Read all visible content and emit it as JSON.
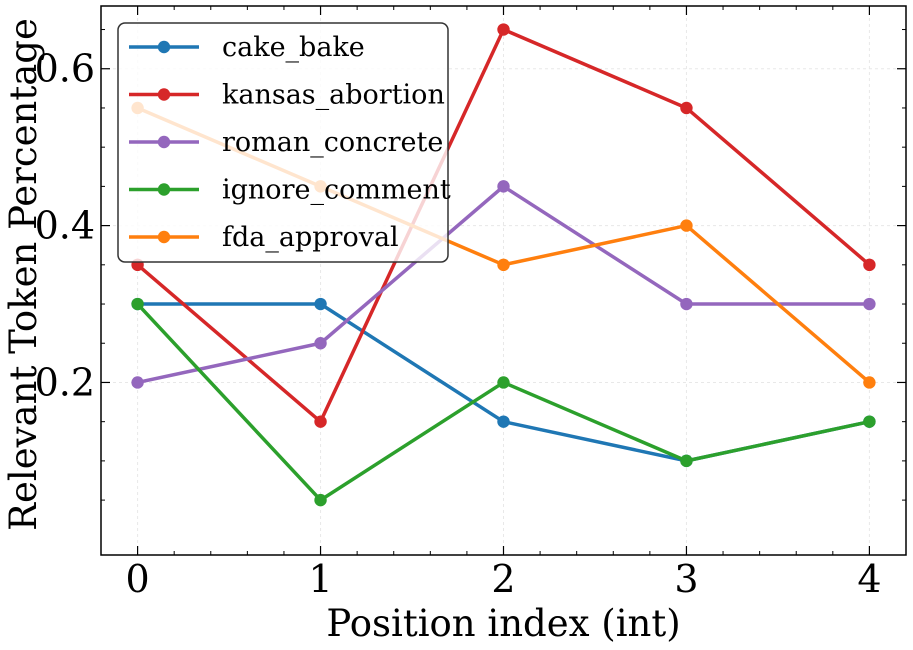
{
  "chart_data": {
    "type": "line",
    "xlabel": "Position index (int)",
    "ylabel": "Relevant Token Percentage",
    "x": [
      0,
      1,
      2,
      3,
      4
    ],
    "x_ticks": [
      "0",
      "1",
      "2",
      "3",
      "4"
    ],
    "y_ticks": [
      "0.2",
      "0.4",
      "0.6"
    ],
    "y_tick_values": [
      0.2,
      0.4,
      0.6
    ],
    "xlim": [
      -0.2,
      4.2
    ],
    "ylim": [
      -0.02,
      0.68
    ],
    "grid": true,
    "legend_position": "upper-left",
    "series": [
      {
        "name": "cake_bake",
        "color": "#1f77b4",
        "values": [
          0.3,
          0.3,
          0.15,
          0.1,
          0.15
        ]
      },
      {
        "name": "kansas_abortion",
        "color": "#d62728",
        "values": [
          0.35,
          0.15,
          0.65,
          0.55,
          0.35
        ]
      },
      {
        "name": "roman_concrete",
        "color": "#9467bd",
        "values": [
          0.2,
          0.25,
          0.45,
          0.3,
          0.3
        ]
      },
      {
        "name": "ignore_comment",
        "color": "#2ca02c",
        "values": [
          0.3,
          0.05,
          0.2,
          0.1,
          0.15
        ]
      },
      {
        "name": "fda_approval",
        "color": "#ff7f0e",
        "values": [
          0.55,
          0.45,
          0.35,
          0.4,
          0.2
        ]
      }
    ]
  }
}
